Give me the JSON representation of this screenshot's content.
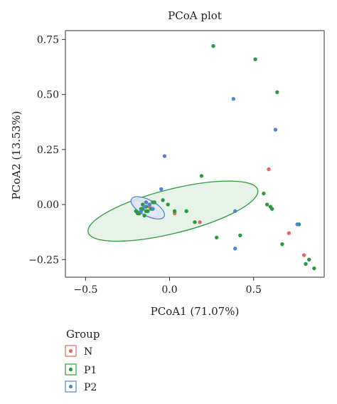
{
  "colors": {
    "N": "#e06b5f",
    "P1": "#2e9a3e",
    "P2": "#4f86d4",
    "axis": "#333333",
    "ellipse_fill_P1": "#e3f1e4",
    "ellipse_fill_N": "#f7e1de",
    "ellipse_fill_P2": "#dde8f7"
  },
  "chart_data": {
    "type": "scatter",
    "title": "PCoA plot",
    "xlabel": "PCoA1 (71.07%)",
    "ylabel": "PCoA2 (13.53%)",
    "xlim": [
      -0.62,
      0.92
    ],
    "ylim": [
      -0.33,
      0.79
    ],
    "xticks": [
      -0.5,
      0.0,
      0.5
    ],
    "xtick_labels": [
      "−0.5",
      "0.0",
      "0.5"
    ],
    "yticks": [
      -0.25,
      0.0,
      0.25,
      0.5,
      0.75
    ],
    "ytick_labels": [
      "−0.25",
      "0.00",
      "0.25",
      "0.50",
      "0.75"
    ],
    "grid": false,
    "legend": {
      "title": "Group",
      "placement": "bottom-left",
      "entries": [
        "N",
        "P1",
        "P2"
      ]
    },
    "ellipses": [
      {
        "group": "P1",
        "cx": 0.02,
        "cy": -0.03,
        "rx": 0.52,
        "ry": 0.1,
        "angle_deg": -14
      },
      {
        "group": "N",
        "cx": -0.14,
        "cy": -0.02,
        "rx": 0.085,
        "ry": 0.026,
        "angle_deg": 28
      },
      {
        "group": "P2",
        "cx": -0.13,
        "cy": -0.015,
        "rx": 0.11,
        "ry": 0.036,
        "angle_deg": 28
      }
    ],
    "series": [
      {
        "name": "N",
        "x": [
          0.59,
          0.03,
          0.18,
          0.71,
          0.8,
          -0.16,
          -0.12,
          -0.18
        ],
        "y": [
          0.16,
          -0.04,
          -0.08,
          -0.13,
          -0.23,
          -0.02,
          -0.01,
          -0.04
        ]
      },
      {
        "name": "P1",
        "x": [
          0.26,
          0.51,
          0.64,
          0.19,
          0.56,
          0.58,
          0.6,
          0.61,
          0.77,
          0.67,
          0.83,
          0.81,
          0.86,
          0.42,
          0.28,
          0.15,
          0.1,
          0.03,
          -0.04,
          -0.01,
          -0.2,
          -0.18,
          -0.16,
          -0.14,
          -0.12,
          -0.1,
          -0.15,
          -0.17,
          -0.13,
          -0.11,
          -0.19,
          -0.09,
          -0.16,
          -0.14
        ],
        "y": [
          0.72,
          0.66,
          0.51,
          0.13,
          0.05,
          0.0,
          -0.01,
          -0.02,
          -0.09,
          -0.18,
          -0.25,
          -0.27,
          -0.29,
          -0.14,
          -0.15,
          -0.08,
          -0.03,
          -0.03,
          0.02,
          0.0,
          -0.03,
          -0.04,
          -0.02,
          -0.01,
          0.0,
          0.01,
          -0.05,
          -0.02,
          -0.03,
          -0.02,
          -0.04,
          0.01,
          0.0,
          -0.03
        ]
      },
      {
        "name": "P2",
        "x": [
          0.38,
          0.63,
          -0.03,
          0.39,
          0.39,
          0.76,
          -0.05,
          -0.15,
          -0.12,
          -0.17,
          -0.1,
          -0.14
        ],
        "y": [
          0.48,
          0.34,
          0.22,
          -0.03,
          -0.2,
          -0.09,
          0.07,
          -0.01,
          0.0,
          -0.03,
          -0.02,
          0.01
        ]
      }
    ]
  }
}
